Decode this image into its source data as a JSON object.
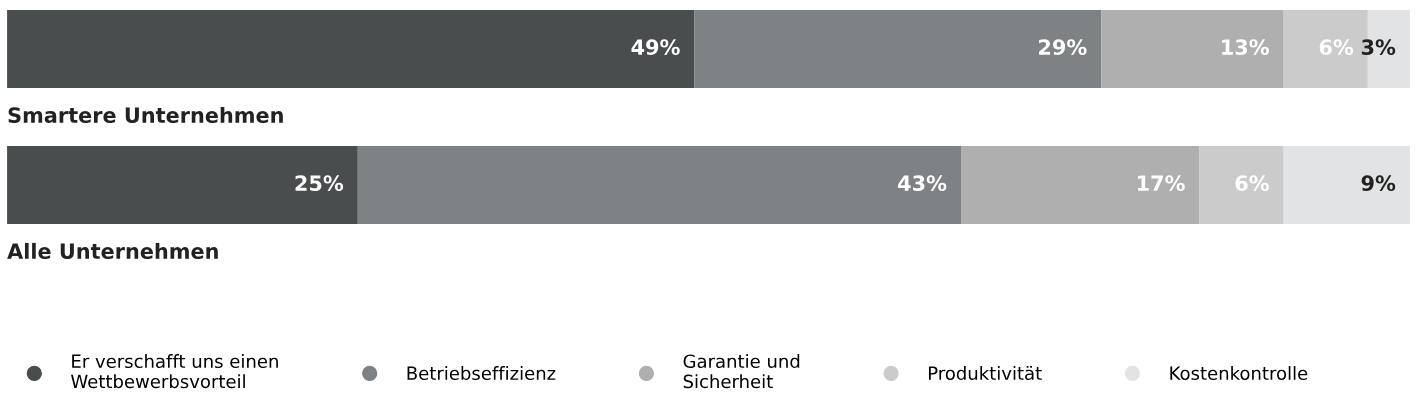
{
  "chart_data": {
    "type": "bar",
    "orientation": "horizontal",
    "stacked": true,
    "categories": [
      "Smartere Unternehmen",
      "Alle Unternehmen"
    ],
    "series": [
      {
        "name": "Er verschafft uns einen\nWettbewerbsvorteil",
        "color": "#4a4d4e",
        "values": [
          49,
          25
        ],
        "value_labels": [
          "49%",
          "25%"
        ]
      },
      {
        "name": "Betriebseffizienz",
        "color": "#7f8284",
        "values": [
          29,
          43
        ],
        "value_labels": [
          "29%",
          "43%"
        ]
      },
      {
        "name": "Garantie und\nSicherheit",
        "color": "#afafaf",
        "values": [
          13,
          17
        ],
        "value_labels": [
          "13%",
          "17%"
        ]
      },
      {
        "name": "Produktivität",
        "color": "#cbcbcb",
        "values": [
          6,
          6
        ],
        "value_labels": [
          "6%",
          "6%"
        ]
      },
      {
        "name": "Kostenkontrolle",
        "color": "#e2e3e4",
        "values": [
          3,
          9
        ],
        "value_labels": [
          "3%",
          "9%"
        ]
      }
    ],
    "tick_labels": false,
    "legend": "bottom",
    "marker": "circle"
  }
}
